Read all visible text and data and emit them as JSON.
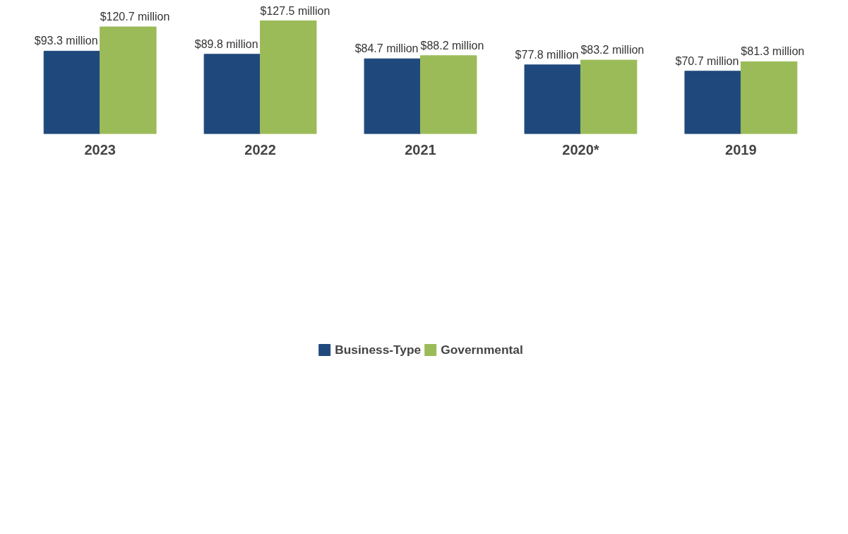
{
  "chart_data": {
    "type": "bar",
    "categories": [
      "2023",
      "2022",
      "2021",
      "2020*",
      "2019"
    ],
    "series": [
      {
        "name": "Business-Type",
        "color": "#1f497d",
        "values": [
          93.3,
          89.8,
          84.7,
          77.8,
          70.7
        ],
        "value_labels": [
          "$93.3 million",
          "$89.8 million",
          "$84.7 million",
          "$77.8 million",
          "$70.7 million"
        ]
      },
      {
        "name": "Governmental",
        "color": "#9bbb59",
        "values": [
          120.7,
          127.5,
          88.2,
          83.2,
          81.3
        ],
        "value_labels": [
          "$120.7 million",
          "$127.5 million",
          "$88.2 million",
          "$83.2 million",
          "$81.3 million"
        ]
      }
    ],
    "grid": false,
    "legend": "bottom"
  }
}
